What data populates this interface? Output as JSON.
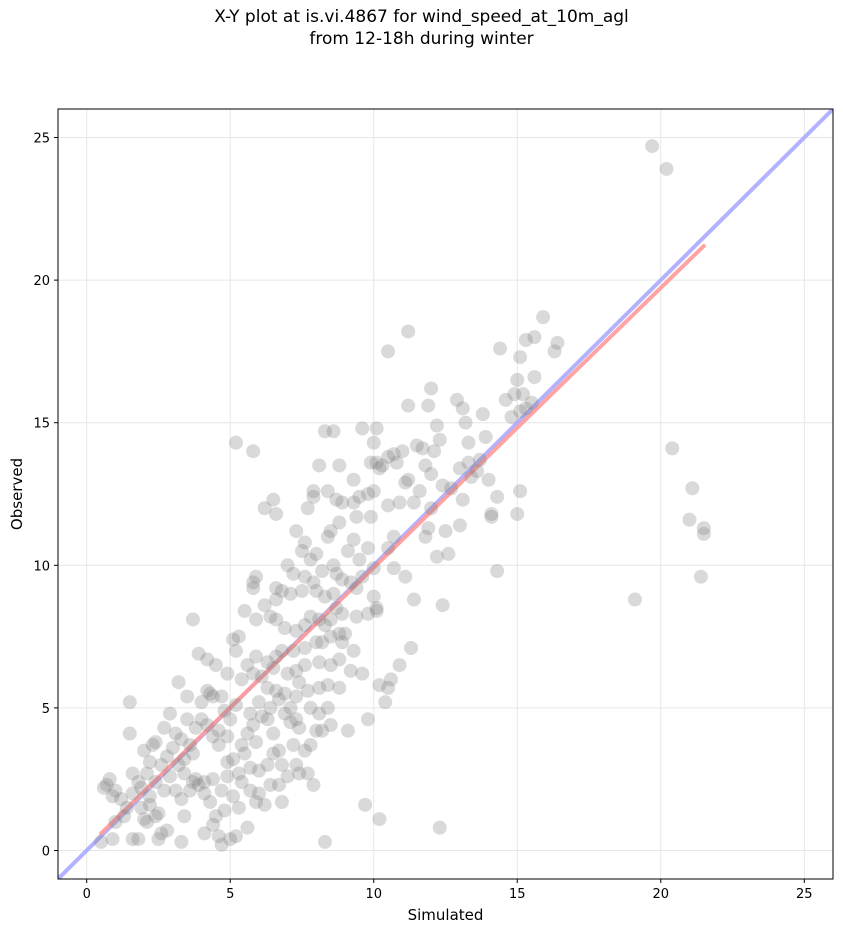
{
  "chart_data": {
    "type": "scatter",
    "title_lines": [
      "X-Y plot at is.vi.4867 for wind_speed_at_10m_agl",
      "from 12-18h during winter"
    ],
    "xlabel": "Simulated",
    "ylabel": "Observed",
    "xlim": [
      -1,
      26
    ],
    "ylim": [
      -1,
      26
    ],
    "xticks": [
      0,
      5,
      10,
      15,
      20,
      25
    ],
    "yticks": [
      0,
      5,
      10,
      15,
      20,
      25
    ],
    "grid": true,
    "colors": {
      "points": "#808080",
      "one_to_one_line": "#aaaaff",
      "fit_line": "#ff9999",
      "axes": "#000000",
      "grid": "#e6e6e6"
    },
    "lines": [
      {
        "kind": "one-to-one",
        "x": [
          -1,
          26
        ],
        "y": [
          -1,
          26
        ],
        "color": "#aaaaff"
      },
      {
        "kind": "fit",
        "x": [
          0.5,
          21.5
        ],
        "y": [
          0.6,
          21.2
        ],
        "color": "#ff9999"
      }
    ],
    "points": [
      [
        19.7,
        24.7
      ],
      [
        20.2,
        23.9
      ],
      [
        20.4,
        14.1
      ],
      [
        21.1,
        12.7
      ],
      [
        21.0,
        11.6
      ],
      [
        21.5,
        11.3
      ],
      [
        21.5,
        11.1
      ],
      [
        21.4,
        9.6
      ],
      [
        19.1,
        8.8
      ],
      [
        15.9,
        18.7
      ],
      [
        16.4,
        17.8
      ],
      [
        16.3,
        17.5
      ],
      [
        15.6,
        18.0
      ],
      [
        15.3,
        17.9
      ],
      [
        15.1,
        17.3
      ],
      [
        14.4,
        17.6
      ],
      [
        15.6,
        16.6
      ],
      [
        15.0,
        16.5
      ],
      [
        14.9,
        16.0
      ],
      [
        15.2,
        16.0
      ],
      [
        14.6,
        15.8
      ],
      [
        15.5,
        15.7
      ],
      [
        15.3,
        15.5
      ],
      [
        15.1,
        15.4
      ],
      [
        14.8,
        15.2
      ],
      [
        15.1,
        12.6
      ],
      [
        15.0,
        11.8
      ],
      [
        11.2,
        18.2
      ],
      [
        10.5,
        17.5
      ],
      [
        12.0,
        16.2
      ],
      [
        12.9,
        15.8
      ],
      [
        13.1,
        15.5
      ],
      [
        13.8,
        15.3
      ],
      [
        11.2,
        15.6
      ],
      [
        11.9,
        15.6
      ],
      [
        12.2,
        14.9
      ],
      [
        13.2,
        15.0
      ],
      [
        13.3,
        14.3
      ],
      [
        12.3,
        14.4
      ],
      [
        11.7,
        14.1
      ],
      [
        12.1,
        14.0
      ],
      [
        11.5,
        14.2
      ],
      [
        11.0,
        14.0
      ],
      [
        10.7,
        13.9
      ],
      [
        10.5,
        13.8
      ],
      [
        10.1,
        13.6
      ],
      [
        10.3,
        13.5
      ],
      [
        10.0,
        14.3
      ],
      [
        10.1,
        14.8
      ],
      [
        9.6,
        14.8
      ],
      [
        8.3,
        14.7
      ],
      [
        8.6,
        14.7
      ],
      [
        8.1,
        13.5
      ],
      [
        8.8,
        13.5
      ],
      [
        9.3,
        13.0
      ],
      [
        9.9,
        13.6
      ],
      [
        10.2,
        13.4
      ],
      [
        10.8,
        13.6
      ],
      [
        11.8,
        13.5
      ],
      [
        12.0,
        13.2
      ],
      [
        13.0,
        13.4
      ],
      [
        13.3,
        13.6
      ],
      [
        13.6,
        13.3
      ],
      [
        13.7,
        13.7
      ],
      [
        13.4,
        13.1
      ],
      [
        14.0,
        13.0
      ],
      [
        13.9,
        14.5
      ],
      [
        14.3,
        12.4
      ],
      [
        14.1,
        11.8
      ],
      [
        14.1,
        11.7
      ],
      [
        13.0,
        11.4
      ],
      [
        12.0,
        12.0
      ],
      [
        11.9,
        11.3
      ],
      [
        11.4,
        12.2
      ],
      [
        11.6,
        12.6
      ],
      [
        12.4,
        12.8
      ],
      [
        12.7,
        12.7
      ],
      [
        12.2,
        10.3
      ],
      [
        12.6,
        10.4
      ],
      [
        12.4,
        8.6
      ],
      [
        14.3,
        9.8
      ],
      [
        11.2,
        13.0
      ],
      [
        11.1,
        12.9
      ],
      [
        10.9,
        12.2
      ],
      [
        10.5,
        12.1
      ],
      [
        10.0,
        12.6
      ],
      [
        9.8,
        12.5
      ],
      [
        9.5,
        12.4
      ],
      [
        9.3,
        12.2
      ],
      [
        8.9,
        12.2
      ],
      [
        8.4,
        12.6
      ],
      [
        8.7,
        12.3
      ],
      [
        8.8,
        11.5
      ],
      [
        8.5,
        11.2
      ],
      [
        9.4,
        11.7
      ],
      [
        9.9,
        11.7
      ],
      [
        9.8,
        10.6
      ],
      [
        9.5,
        10.2
      ],
      [
        9.1,
        10.5
      ],
      [
        9.3,
        10.9
      ],
      [
        10.5,
        10.6
      ],
      [
        10.7,
        9.9
      ],
      [
        10.0,
        9.9
      ],
      [
        9.6,
        9.6
      ],
      [
        9.4,
        9.2
      ],
      [
        10.0,
        8.9
      ],
      [
        10.1,
        8.5
      ],
      [
        9.8,
        8.3
      ],
      [
        10.1,
        8.4
      ],
      [
        9.4,
        8.2
      ],
      [
        8.7,
        8.5
      ],
      [
        8.6,
        9.0
      ],
      [
        8.9,
        9.5
      ],
      [
        8.2,
        9.8
      ],
      [
        8.0,
        10.4
      ],
      [
        7.8,
        10.2
      ],
      [
        7.5,
        10.5
      ],
      [
        7.0,
        10.0
      ],
      [
        7.2,
        9.7
      ],
      [
        7.6,
        9.6
      ],
      [
        7.9,
        9.4
      ],
      [
        8.0,
        9.1
      ],
      [
        7.5,
        9.1
      ],
      [
        7.1,
        9.0
      ],
      [
        6.8,
        9.1
      ],
      [
        6.6,
        8.8
      ],
      [
        6.2,
        8.6
      ],
      [
        6.4,
        8.2
      ],
      [
        6.6,
        8.1
      ],
      [
        6.9,
        7.8
      ],
      [
        7.3,
        7.7
      ],
      [
        7.6,
        7.9
      ],
      [
        7.8,
        8.2
      ],
      [
        8.1,
        8.1
      ],
      [
        8.3,
        7.9
      ],
      [
        8.5,
        7.5
      ],
      [
        8.8,
        7.6
      ],
      [
        8.0,
        7.3
      ],
      [
        7.6,
        7.1
      ],
      [
        7.2,
        7.0
      ],
      [
        6.8,
        7.0
      ],
      [
        6.6,
        6.8
      ],
      [
        6.3,
        6.6
      ],
      [
        6.5,
        6.4
      ],
      [
        6.1,
        6.1
      ],
      [
        5.8,
        6.2
      ],
      [
        5.4,
        6.0
      ],
      [
        5.6,
        6.5
      ],
      [
        5.9,
        6.8
      ],
      [
        5.2,
        7.0
      ],
      [
        5.1,
        7.4
      ],
      [
        5.3,
        7.5
      ],
      [
        5.5,
        8.4
      ],
      [
        5.9,
        8.1
      ],
      [
        5.8,
        9.4
      ],
      [
        5.9,
        9.6
      ],
      [
        5.8,
        9.2
      ],
      [
        6.6,
        9.2
      ],
      [
        6.2,
        12.0
      ],
      [
        6.5,
        12.3
      ],
      [
        6.6,
        11.8
      ],
      [
        5.2,
        14.3
      ],
      [
        5.8,
        14.0
      ],
      [
        7.3,
        11.2
      ],
      [
        7.6,
        10.8
      ],
      [
        7.7,
        12.0
      ],
      [
        7.9,
        12.4
      ],
      [
        7.9,
        12.6
      ],
      [
        8.4,
        11.0
      ],
      [
        8.6,
        10.0
      ],
      [
        8.7,
        9.7
      ],
      [
        9.2,
        9.4
      ],
      [
        8.3,
        8.9
      ],
      [
        8.9,
        8.3
      ],
      [
        8.5,
        8.1
      ],
      [
        8.2,
        7.3
      ],
      [
        8.9,
        7.3
      ],
      [
        9.0,
        7.6
      ],
      [
        9.3,
        7.0
      ],
      [
        8.8,
        6.7
      ],
      [
        8.5,
        6.5
      ],
      [
        8.1,
        6.6
      ],
      [
        7.6,
        6.5
      ],
      [
        7.3,
        6.3
      ],
      [
        7.0,
        6.2
      ],
      [
        7.4,
        5.9
      ],
      [
        7.7,
        5.6
      ],
      [
        8.1,
        5.7
      ],
      [
        8.4,
        5.8
      ],
      [
        8.8,
        5.7
      ],
      [
        9.2,
        6.3
      ],
      [
        9.6,
        6.2
      ],
      [
        10.2,
        5.8
      ],
      [
        10.6,
        6.0
      ],
      [
        10.5,
        5.7
      ],
      [
        8.4,
        5.0
      ],
      [
        8.5,
        4.4
      ],
      [
        8.0,
        4.2
      ],
      [
        7.8,
        3.7
      ],
      [
        7.4,
        4.3
      ],
      [
        7.3,
        4.6
      ],
      [
        6.9,
        4.8
      ],
      [
        7.1,
        5.0
      ],
      [
        6.7,
        5.3
      ],
      [
        6.6,
        5.6
      ],
      [
        6.3,
        5.7
      ],
      [
        6.0,
        5.2
      ],
      [
        5.7,
        4.8
      ],
      [
        5.8,
        4.4
      ],
      [
        5.6,
        4.1
      ],
      [
        5.9,
        3.8
      ],
      [
        6.3,
        4.6
      ],
      [
        6.1,
        4.7
      ],
      [
        6.5,
        4.1
      ],
      [
        6.7,
        3.5
      ],
      [
        6.3,
        3.0
      ],
      [
        6.0,
        2.8
      ],
      [
        5.7,
        2.9
      ],
      [
        5.5,
        3.4
      ],
      [
        5.1,
        3.2
      ],
      [
        4.9,
        3.1
      ],
      [
        4.6,
        3.7
      ],
      [
        4.4,
        4.0
      ],
      [
        4.2,
        4.4
      ],
      [
        4.0,
        4.6
      ],
      [
        3.8,
        4.3
      ],
      [
        3.5,
        4.6
      ],
      [
        3.1,
        4.1
      ],
      [
        3.0,
        3.6
      ],
      [
        2.8,
        3.3
      ],
      [
        2.6,
        3.0
      ],
      [
        2.2,
        3.1
      ],
      [
        2.3,
        3.7
      ],
      [
        2.0,
        3.5
      ],
      [
        2.1,
        2.7
      ],
      [
        1.9,
        2.2
      ],
      [
        1.6,
        2.0
      ],
      [
        1.4,
        1.5
      ],
      [
        1.2,
        1.8
      ],
      [
        0.9,
        1.9
      ],
      [
        1.0,
        2.1
      ],
      [
        0.7,
        2.3
      ],
      [
        0.6,
        2.2
      ],
      [
        0.8,
        2.5
      ],
      [
        1.5,
        5.2
      ],
      [
        1.5,
        4.1
      ],
      [
        0.5,
        0.3
      ],
      [
        0.9,
        0.4
      ],
      [
        1.6,
        0.4
      ],
      [
        1.8,
        0.4
      ],
      [
        2.1,
        1.0
      ],
      [
        2.2,
        1.6
      ],
      [
        2.4,
        1.2
      ],
      [
        2.6,
        0.6
      ],
      [
        2.8,
        0.7
      ],
      [
        3.3,
        1.8
      ],
      [
        3.4,
        1.2
      ],
      [
        3.6,
        2.1
      ],
      [
        3.8,
        2.5
      ],
      [
        3.9,
        2.3
      ],
      [
        4.1,
        2.4
      ],
      [
        4.3,
        1.7
      ],
      [
        4.5,
        1.2
      ],
      [
        4.7,
        0.2
      ],
      [
        4.6,
        0.5
      ],
      [
        5.0,
        0.4
      ],
      [
        5.2,
        0.5
      ],
      [
        5.3,
        1.5
      ],
      [
        5.1,
        1.9
      ],
      [
        5.4,
        2.4
      ],
      [
        5.7,
        2.1
      ],
      [
        5.9,
        1.7
      ],
      [
        6.2,
        1.6
      ],
      [
        6.4,
        2.3
      ],
      [
        6.7,
        2.3
      ],
      [
        7.0,
        2.6
      ],
      [
        7.3,
        3.0
      ],
      [
        7.7,
        2.7
      ],
      [
        7.9,
        2.3
      ],
      [
        7.4,
        2.7
      ],
      [
        6.8,
        3.0
      ],
      [
        6.5,
        3.4
      ],
      [
        7.2,
        3.7
      ],
      [
        7.6,
        3.5
      ],
      [
        8.2,
        4.2
      ],
      [
        8.3,
        0.3
      ],
      [
        9.7,
        1.6
      ],
      [
        10.2,
        1.1
      ],
      [
        12.3,
        0.8
      ],
      [
        3.7,
        8.1
      ],
      [
        3.9,
        6.9
      ],
      [
        4.2,
        6.7
      ],
      [
        4.5,
        6.5
      ],
      [
        4.9,
        6.2
      ],
      [
        4.2,
        5.6
      ],
      [
        4.4,
        5.4
      ],
      [
        4.7,
        5.4
      ],
      [
        4.8,
        4.9
      ],
      [
        5.0,
        4.6
      ],
      [
        5.2,
        5.1
      ],
      [
        4.6,
        4.2
      ],
      [
        4.9,
        4.0
      ],
      [
        5.4,
        3.7
      ],
      [
        5.3,
        2.7
      ],
      [
        4.9,
        2.6
      ],
      [
        4.7,
        2.1
      ],
      [
        4.4,
        2.5
      ],
      [
        4.1,
        2.0
      ],
      [
        3.7,
        2.4
      ],
      [
        3.4,
        2.7
      ],
      [
        3.2,
        3.0
      ],
      [
        2.9,
        2.6
      ],
      [
        2.7,
        2.1
      ],
      [
        2.4,
        2.4
      ],
      [
        2.2,
        1.9
      ],
      [
        1.9,
        1.5
      ],
      [
        2.0,
        1.1
      ],
      [
        2.5,
        1.3
      ],
      [
        3.1,
        2.1
      ],
      [
        3.4,
        3.2
      ],
      [
        3.6,
        3.7
      ],
      [
        3.2,
        5.9
      ],
      [
        3.5,
        5.4
      ],
      [
        4.0,
        5.2
      ],
      [
        4.3,
        5.5
      ],
      [
        3.7,
        3.4
      ],
      [
        3.3,
        3.9
      ],
      [
        2.9,
        4.8
      ],
      [
        2.7,
        4.3
      ],
      [
        2.4,
        3.8
      ],
      [
        1.8,
        2.4
      ],
      [
        1.6,
        2.7
      ],
      [
        1.3,
        1.2
      ],
      [
        1.0,
        1.0
      ],
      [
        2.5,
        0.4
      ],
      [
        3.3,
        0.3
      ],
      [
        4.1,
        0.6
      ],
      [
        4.4,
        0.9
      ],
      [
        4.8,
        1.4
      ],
      [
        5.6,
        0.8
      ],
      [
        6.0,
        2.0
      ],
      [
        6.8,
        1.7
      ],
      [
        7.1,
        4.5
      ],
      [
        6.4,
        5.0
      ],
      [
        6.9,
        5.5
      ],
      [
        7.3,
        5.4
      ],
      [
        7.8,
        5.0
      ],
      [
        8.1,
        4.8
      ],
      [
        9.1,
        4.2
      ],
      [
        9.8,
        4.6
      ],
      [
        10.4,
        5.2
      ],
      [
        10.9,
        6.5
      ],
      [
        11.3,
        7.1
      ],
      [
        11.4,
        8.8
      ],
      [
        11.1,
        9.6
      ],
      [
        10.7,
        11.0
      ],
      [
        11.8,
        11.0
      ],
      [
        12.5,
        11.2
      ],
      [
        13.1,
        12.3
      ]
    ]
  }
}
